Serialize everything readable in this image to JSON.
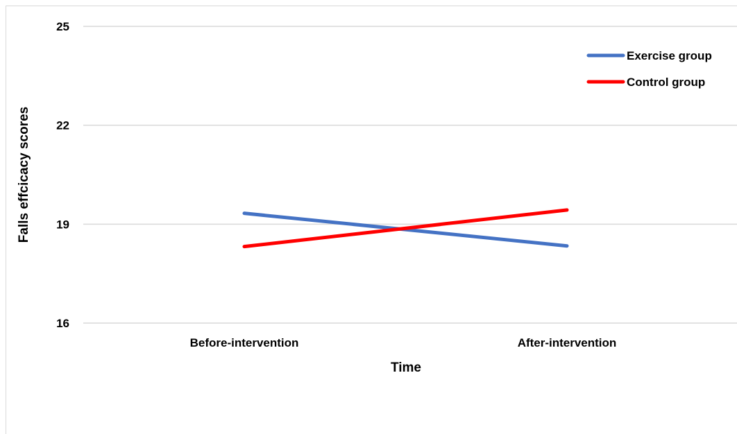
{
  "chart_data": {
    "type": "line",
    "categories": [
      "Before-intervention",
      "After-intervention"
    ],
    "series": [
      {
        "name": "Exercise group",
        "values": [
          19.33,
          18.34
        ],
        "color": "#4472c4"
      },
      {
        "name": "Control group",
        "values": [
          18.32,
          19.43
        ],
        "color": "#ff0000"
      }
    ],
    "xlabel": "Time",
    "ylabel": "Falls effcicacy scores",
    "ylim": [
      16,
      25
    ],
    "yticks": [
      16,
      19,
      22,
      25
    ],
    "grid": true,
    "legend": "top-right"
  }
}
